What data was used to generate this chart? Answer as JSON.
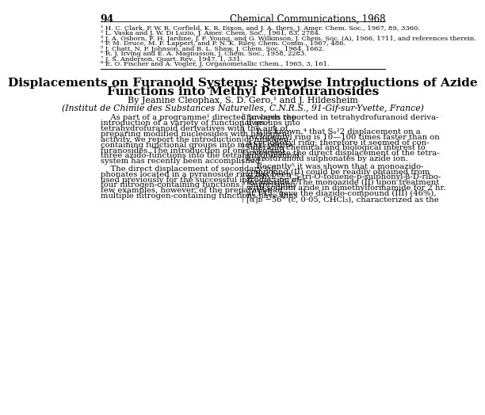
{
  "page_num": "94",
  "journal": "Chemical Communications, 1968",
  "bg_color": "#ffffff",
  "text_color": "#000000",
  "ref1": "¹ H. C. Clark, P. W. R. Corfield, K. R. Dixon, and J. A. Ibers, J. Amer. Chem. Soc., 1967, 89, 3360.",
  "ref2": "² L. Vaska and J. W. Di Luzio, J. Amer. Chem. Soc., 1961, 83, 2784.",
  "ref3": "³ J. A. Osborn, F. H. Jardine, J. F. Young, and G. Wilkinson, J. Chem. Soc. (A), 1966, 1711, and references therein.",
  "ref4": "⁴ P. M. Druce, M. F. Lappert, and P. N. K. Riley, Chem. Comm., 1967, 486.",
  "ref5": "⁵ J. Chatt, N. P. Johnson, and B. L. Shaw, J. Chem. Soc., 1964, 1662.",
  "ref6": "⁶ R. J. Irving and E. A. Magnusson, J. Chem. Soc., 1958, 2283.",
  "ref7": "⁷ J. S. Anderson, Quart. Rev., 1947, 1, 331.",
  "ref8": "⁸ E. O. Fischer and A. Vogler, J. Organometallic Chem., 1965, 3, 161.",
  "article_title_line1": "Displacements on Furanoid Systems: Stepwise Introductions of Azide",
  "article_title_line2": "Functions into Methyl Pentofuranosides",
  "byline": "By Jeanine Cleophax, S. D. Gero,¹ and J. Hildesheim",
  "affiliation": "(Institut de Chimie des Substances Naturelles, C.N.R.S., 91-Gif-sur-Yvette, France)",
  "col1_para1_lines": [
    "    As part of a programme¹ directed towards the",
    "introduction of a variety of functional groups into",
    "tetrahydrofuranoid derivatives with the aim of",
    "preparing modified nucleosides with biological",
    "activity, we report the introduction of nitrogen-",
    "containing functional groups into methyl pento-",
    "furanosides. The introduction of one, two and",
    "three azido-functions into the tetrahydrofuranoid",
    "system has recently been accomplished.²"
  ],
  "col1_para2_lines": [
    "    The direct displacement of secondary sul-",
    "phonates located in a pyranoside ring has been",
    "used previously for the successful introduction of",
    "four nitrogen-containing functions.³ Surprisingly",
    "few examples, however, of the preparation of",
    "multiple nitrogen-containing functions have thus"
  ],
  "col2_para1_lines": [
    "far been reported in tetrahydrofuranoid deriva-",
    "tives.³"
  ],
  "col2_para2_lines": [
    "    It is known,⁴ that Sₙ²2 displacement on a",
    "cyclopentyl ring is 10—100 times faster than on",
    "a cyclohexyl ring; therefore it seemed of con-",
    "siderable chemical and biological interest to",
    "investigate the direct displacement of the tetra-",
    "hydrofuranoid sulphonates by azide ion."
  ],
  "col2_para3_lines": [
    "    Recently⁵ it was shown that a monoazido-",
    "compound (II) could be readily obtained from",
    "methyl  2,3,5-tri-O-toluene-p-sulphonyl-β-D-ribo-",
    "furanoside.⁶ The monoazide (II) upon treatment",
    "with sodium azide in dimethylformamide for 2 hr.",
    "at 145° gave the diazido-compound (III) (46%),",
    "[α]ᴅ −56° (c, 0·05, CHCl₃), characterized as the"
  ]
}
